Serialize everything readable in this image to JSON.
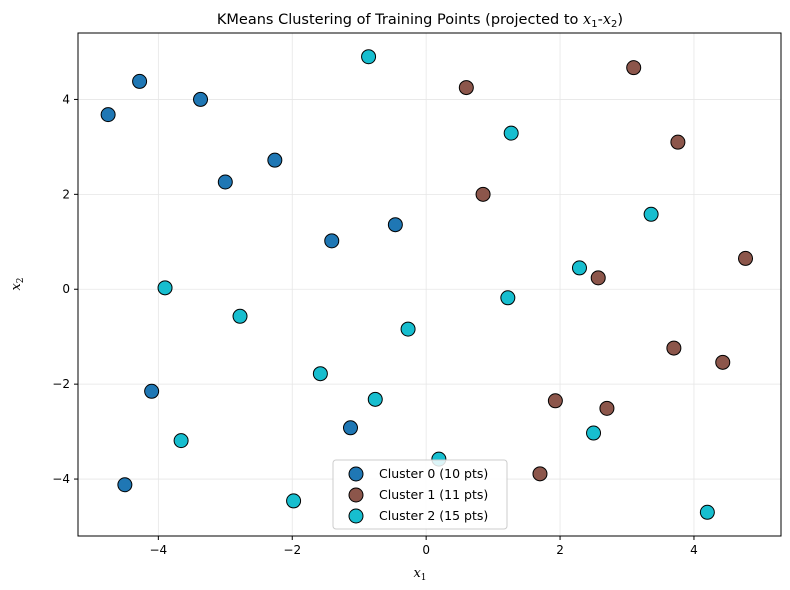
{
  "chart_data": {
    "type": "scatter",
    "title_prefix": "KMeans Clustering of Training Points (projected to ",
    "title_x": "x",
    "title_x_sub": "1",
    "title_sep": "-",
    "title_y": "x",
    "title_y_sub": "2",
    "title_suffix": ")",
    "xlabel": "x",
    "xlabel_sub": "1",
    "ylabel": "x",
    "ylabel_sub": "2",
    "xlim": [
      -5.2,
      5.3
    ],
    "ylim": [
      -5.2,
      5.4
    ],
    "xticks": [
      -4,
      -2,
      0,
      2,
      4
    ],
    "yticks": [
      -4,
      -2,
      0,
      2,
      4
    ],
    "xtick_labels": [
      "−4",
      "−2",
      "0",
      "2",
      "4"
    ],
    "ytick_labels": [
      "−4",
      "−2",
      "0",
      "2",
      "4"
    ],
    "grid": true,
    "legend_position": "bottom-center",
    "series": [
      {
        "name": "Cluster 0 (10 pts)",
        "color": "#1f77b4",
        "x": [
          -4.75,
          -4.28,
          -3.37,
          -2.26,
          -3.0,
          -1.41,
          -0.46,
          -4.1,
          -1.13,
          -4.5
        ],
        "y": [
          3.68,
          4.38,
          4.0,
          2.72,
          2.26,
          1.02,
          1.36,
          -2.15,
          -2.92,
          -4.12
        ]
      },
      {
        "name": "Cluster 1 (11 pts)",
        "color": "#8c564b",
        "x": [
          0.6,
          3.1,
          3.76,
          0.85,
          2.57,
          4.77,
          3.7,
          4.43,
          1.93,
          2.7,
          1.7
        ],
        "y": [
          4.25,
          4.67,
          3.1,
          2.0,
          0.24,
          0.65,
          -1.24,
          -1.54,
          -2.35,
          -2.51,
          -3.89
        ]
      },
      {
        "name": "Cluster 2 (15 pts)",
        "color": "#17becf",
        "x": [
          -0.86,
          1.27,
          3.36,
          2.29,
          1.22,
          -3.9,
          -2.78,
          -0.27,
          -1.58,
          -0.76,
          -3.66,
          2.5,
          0.19,
          -1.98,
          4.2
        ],
        "y": [
          4.9,
          3.29,
          1.58,
          0.45,
          -0.18,
          0.03,
          -0.57,
          -0.84,
          -1.78,
          -2.32,
          -3.19,
          -3.03,
          -3.58,
          -4.46,
          -4.7
        ]
      }
    ]
  }
}
